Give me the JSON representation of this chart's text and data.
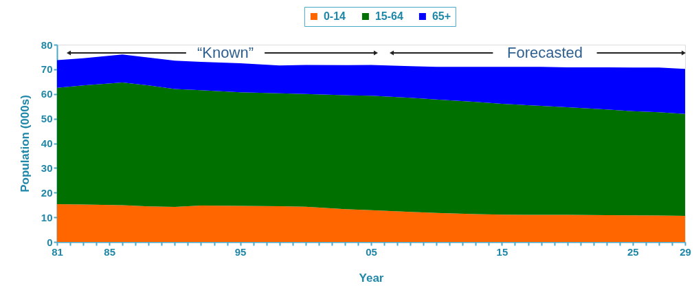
{
  "chart_data": {
    "type": "area",
    "stacked": true,
    "xlabel": "Year",
    "ylabel": "Population (000s)",
    "legend": "top",
    "x": [
      1981,
      1983,
      1986,
      1988,
      1990,
      1992,
      1995,
      1998,
      2000,
      2003,
      2005,
      2008,
      2010,
      2013,
      2015,
      2018,
      2020,
      2023,
      2025,
      2027,
      2029
    ],
    "series": [
      {
        "name": "0-14",
        "color": "#ff6600",
        "values": [
          15.3,
          15.2,
          14.9,
          14.4,
          14.2,
          14.8,
          14.6,
          14.5,
          14.3,
          13.3,
          12.9,
          12.2,
          11.8,
          11.3,
          11.1,
          11.0,
          11.0,
          10.9,
          10.8,
          10.7,
          10.6
        ]
      },
      {
        "name": "15-64",
        "color": "#007000",
        "values": [
          47.2,
          48.3,
          49.8,
          49.1,
          47.8,
          46.7,
          46.1,
          45.8,
          45.7,
          46.2,
          46.4,
          46.3,
          46.0,
          45.5,
          44.9,
          44.2,
          43.6,
          42.8,
          42.2,
          41.9,
          41.3
        ]
      },
      {
        "name": "65+",
        "color": "#0000ff",
        "values": [
          11.2,
          11.0,
          11.3,
          11.3,
          11.5,
          11.5,
          11.8,
          11.3,
          11.8,
          12.2,
          12.5,
          12.8,
          13.2,
          14.2,
          15.0,
          15.8,
          16.2,
          17.1,
          17.7,
          18.1,
          18.3
        ]
      }
    ],
    "xlim": [
      1981,
      2029
    ],
    "ylim": [
      0,
      80
    ],
    "yticks": [
      0,
      10,
      20,
      30,
      40,
      50,
      60,
      70,
      80
    ],
    "xticks": [
      {
        "value": 1981,
        "label": "81"
      },
      {
        "value": 1982,
        "label": null
      },
      {
        "value": 1983,
        "label": null
      },
      {
        "value": 1984,
        "label": null
      },
      {
        "value": 1985,
        "label": "85"
      },
      {
        "value": 1986,
        "label": null
      },
      {
        "value": 1987,
        "label": null
      },
      {
        "value": 1988,
        "label": null
      },
      {
        "value": 1989,
        "label": null
      },
      {
        "value": 1990,
        "label": null
      },
      {
        "value": 1991,
        "label": null
      },
      {
        "value": 1992,
        "label": null
      },
      {
        "value": 1993,
        "label": null
      },
      {
        "value": 1994,
        "label": null
      },
      {
        "value": 1995,
        "label": "95"
      },
      {
        "value": 1996,
        "label": null
      },
      {
        "value": 1997,
        "label": null
      },
      {
        "value": 1998,
        "label": null
      },
      {
        "value": 1999,
        "label": null
      },
      {
        "value": 2000,
        "label": null
      },
      {
        "value": 2001,
        "label": null
      },
      {
        "value": 2002,
        "label": null
      },
      {
        "value": 2003,
        "label": null
      },
      {
        "value": 2004,
        "label": null
      },
      {
        "value": 2005,
        "label": "05"
      },
      {
        "value": 2006,
        "label": null
      },
      {
        "value": 2007,
        "label": null
      },
      {
        "value": 2008,
        "label": null
      },
      {
        "value": 2009,
        "label": null
      },
      {
        "value": 2010,
        "label": null
      },
      {
        "value": 2011,
        "label": null
      },
      {
        "value": 2012,
        "label": null
      },
      {
        "value": 2013,
        "label": null
      },
      {
        "value": 2014,
        "label": null
      },
      {
        "value": 2015,
        "label": "15"
      },
      {
        "value": 2016,
        "label": null
      },
      {
        "value": 2017,
        "label": null
      },
      {
        "value": 2018,
        "label": null
      },
      {
        "value": 2019,
        "label": null
      },
      {
        "value": 2020,
        "label": null
      },
      {
        "value": 2021,
        "label": null
      },
      {
        "value": 2022,
        "label": null
      },
      {
        "value": 2023,
        "label": null
      },
      {
        "value": 2024,
        "label": null
      },
      {
        "value": 2025,
        "label": "25"
      },
      {
        "value": 2026,
        "label": null
      },
      {
        "value": 2027,
        "label": null
      },
      {
        "value": 2028,
        "label": null
      },
      {
        "value": 2029,
        "label": "29"
      }
    ],
    "annotations": [
      "“Known”",
      "Forecasted"
    ]
  }
}
